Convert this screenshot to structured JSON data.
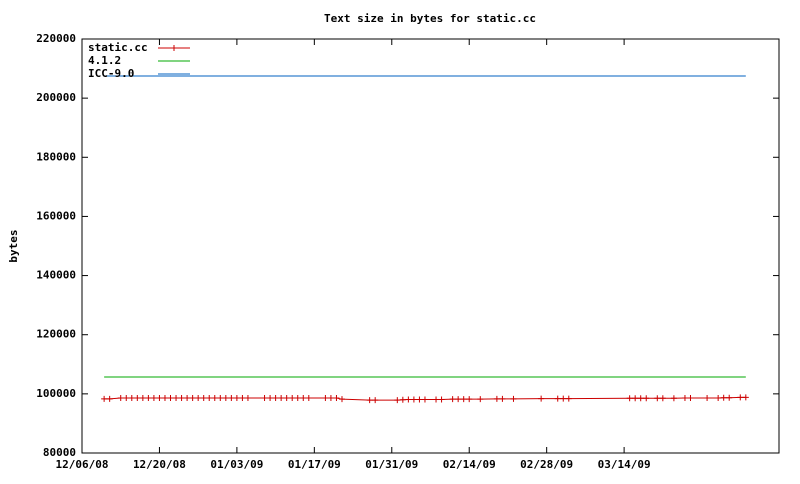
{
  "chart_data": {
    "type": "line",
    "title": "Text size in bytes for static.cc",
    "ylabel": "bytes",
    "xlim": [
      "12/06/08",
      "04/11/09"
    ],
    "xticks": [
      "12/06/08",
      "12/20/08",
      "01/03/09",
      "01/17/09",
      "01/31/09",
      "02/14/09",
      "02/28/09",
      "03/14/09"
    ],
    "ylim": [
      80000,
      220000
    ],
    "yticks": [
      80000,
      100000,
      120000,
      140000,
      160000,
      180000,
      200000,
      220000
    ],
    "legend": "top-left",
    "series": [
      {
        "name": "static.cc",
        "color": "#cc0000",
        "marker": "plus",
        "x": [
          "12/10/08",
          "12/11/08",
          "12/13/08",
          "12/14/08",
          "12/15/08",
          "12/16/08",
          "12/17/08",
          "12/18/08",
          "12/19/08",
          "12/20/08",
          "12/21/08",
          "12/22/08",
          "12/23/08",
          "12/24/08",
          "12/25/08",
          "12/26/08",
          "12/27/08",
          "12/28/08",
          "12/29/08",
          "12/30/08",
          "12/31/08",
          "01/01/09",
          "01/02/09",
          "01/03/09",
          "01/04/09",
          "01/05/09",
          "01/08/09",
          "01/09/09",
          "01/10/09",
          "01/11/09",
          "01/12/09",
          "01/13/09",
          "01/14/09",
          "01/15/09",
          "01/16/09",
          "01/19/09",
          "01/20/09",
          "01/21/09",
          "01/22/09",
          "01/27/09",
          "01/28/09",
          "02/01/09",
          "02/02/09",
          "02/03/09",
          "02/04/09",
          "02/05/09",
          "02/06/09",
          "02/08/09",
          "02/09/09",
          "02/11/09",
          "02/12/09",
          "02/13/09",
          "02/14/09",
          "02/16/09",
          "02/19/09",
          "02/20/09",
          "02/22/09",
          "02/27/09",
          "03/02/09",
          "03/03/09",
          "03/04/09",
          "03/15/09",
          "03/16/09",
          "03/17/09",
          "03/18/09",
          "03/20/09",
          "03/21/09",
          "03/23/09",
          "03/25/09",
          "03/26/09",
          "03/29/09",
          "03/31/09",
          "04/01/09",
          "04/02/09",
          "04/04/09",
          "04/05/09"
        ],
        "values": [
          98300,
          98300,
          98600,
          98600,
          98600,
          98600,
          98600,
          98600,
          98600,
          98600,
          98600,
          98600,
          98600,
          98600,
          98600,
          98600,
          98600,
          98600,
          98600,
          98600,
          98600,
          98600,
          98600,
          98600,
          98600,
          98600,
          98600,
          98600,
          98600,
          98600,
          98600,
          98600,
          98600,
          98600,
          98600,
          98600,
          98600,
          98600,
          98200,
          97900,
          97900,
          97900,
          98000,
          98100,
          98100,
          98100,
          98100,
          98100,
          98100,
          98200,
          98200,
          98200,
          98200,
          98200,
          98300,
          98300,
          98300,
          98400,
          98400,
          98400,
          98400,
          98500,
          98500,
          98500,
          98500,
          98500,
          98500,
          98500,
          98600,
          98600,
          98600,
          98600,
          98700,
          98700,
          98800,
          98800
        ]
      },
      {
        "name": "4.1.2",
        "color": "#00aa00",
        "x": [
          "12/10/08",
          "04/05/09"
        ],
        "values": [
          105700,
          105700
        ]
      },
      {
        "name": "ICC-9.0",
        "color": "#0060c0",
        "x": [
          "12/10/08",
          "04/05/09"
        ],
        "values": [
          207500,
          207500
        ]
      }
    ]
  }
}
